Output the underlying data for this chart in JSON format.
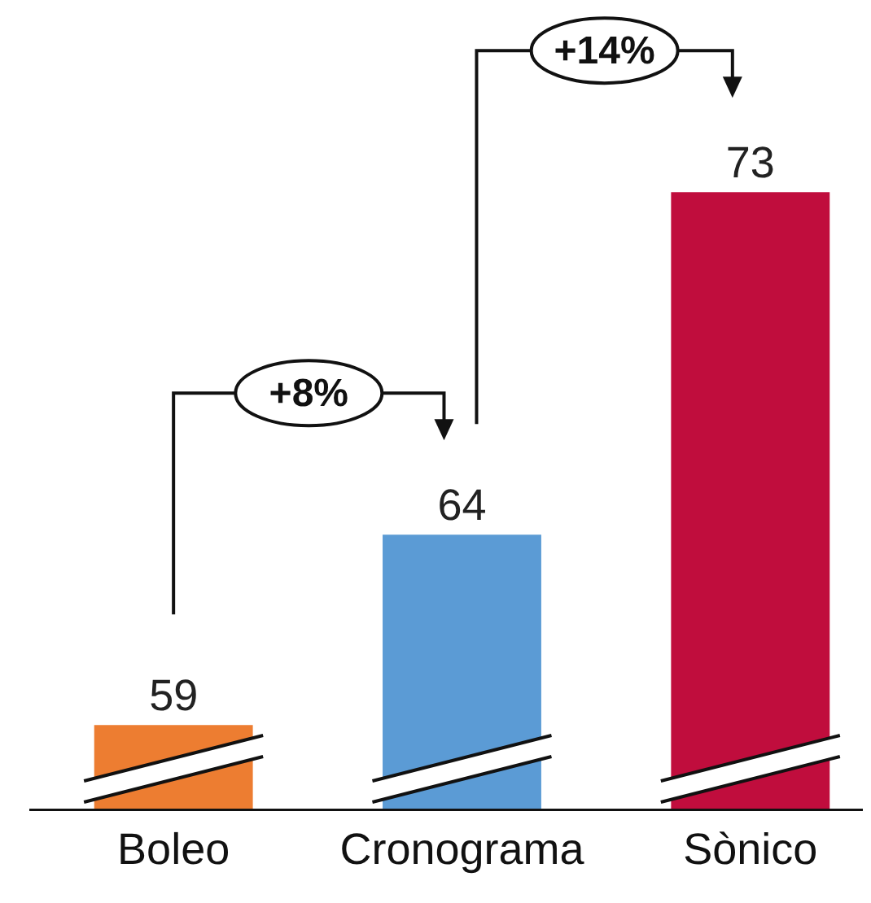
{
  "chart_data": {
    "type": "bar",
    "categories": [
      "Boleo",
      "Cronograma",
      "Sònico"
    ],
    "values": [
      59,
      64,
      73
    ],
    "colors": [
      "#ed7d31",
      "#5b9bd5",
      "#c00d3d"
    ],
    "data_labels": true,
    "tick_labels": "x",
    "annotations": [
      "+8%",
      "+14%"
    ]
  }
}
